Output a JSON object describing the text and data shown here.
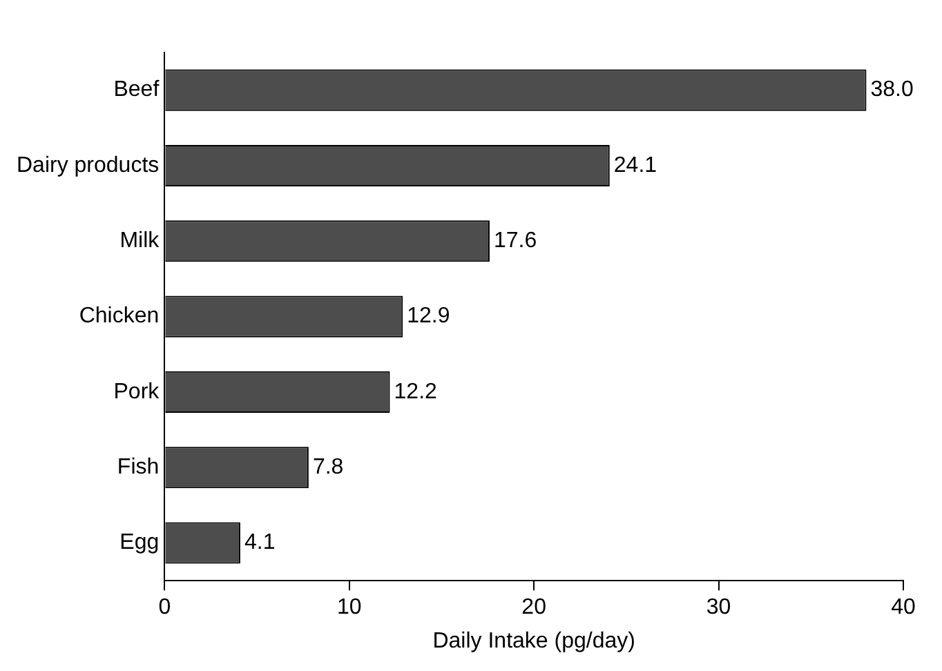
{
  "chart_data": {
    "type": "bar",
    "orientation": "horizontal",
    "xlabel": "Daily Intake (pg/day)",
    "categories": [
      "Beef",
      "Dairy products",
      "Milk",
      "Chicken",
      "Pork",
      "Fish",
      "Egg"
    ],
    "values": [
      38.0,
      24.1,
      17.6,
      12.9,
      12.2,
      7.8,
      4.1
    ],
    "value_labels": [
      "38.0",
      "24.1",
      "17.6",
      "12.9",
      "12.2",
      "7.8",
      "4.1"
    ],
    "color": "#4d4d4d",
    "xlim": [
      0,
      40
    ],
    "xticks": [
      0,
      10,
      20,
      30,
      40
    ],
    "grid": false,
    "legend": false
  }
}
